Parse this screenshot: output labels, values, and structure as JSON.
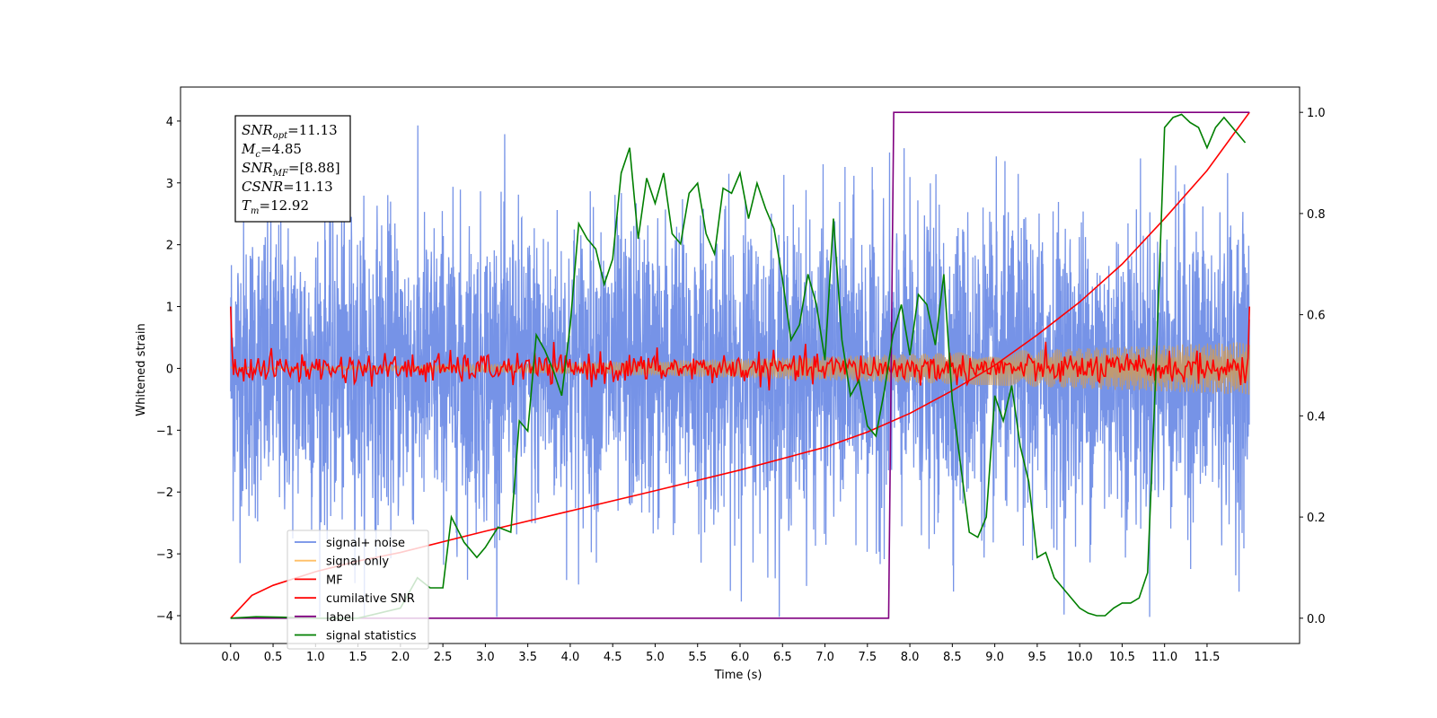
{
  "chart_data": {
    "type": "line",
    "title": "",
    "xlabel": "Time (s)",
    "ylabel": "Whitened strain",
    "xlim": [
      -0.59,
      12.59
    ],
    "ylim": [
      -4.45,
      4.55
    ],
    "y2lim": [
      -0.05,
      1.05
    ],
    "xticks": [
      0.0,
      0.5,
      1.0,
      1.5,
      2.0,
      2.5,
      3.0,
      3.5,
      4.0,
      4.5,
      5.0,
      5.5,
      6.0,
      6.5,
      7.0,
      7.5,
      8.0,
      8.5,
      9.0,
      9.5,
      10.0,
      10.5,
      11.0,
      11.5
    ],
    "xtick_labels": [
      "0.0",
      "0.5",
      "1.0",
      "1.5",
      "2.0",
      "2.5",
      "3.0",
      "3.5",
      "4.0",
      "4.5",
      "5.0",
      "5.5",
      "6.0",
      "6.5",
      "7.0",
      "7.5",
      "8.0",
      "8.5",
      "9.0",
      "9.5",
      "10.0",
      "10.5",
      "11.0",
      "11.5"
    ],
    "yticks": [
      -4,
      -3,
      -2,
      -1,
      0,
      1,
      2,
      3,
      4
    ],
    "ytick_labels": [
      "−4",
      "−3",
      "−2",
      "−1",
      "0",
      "1",
      "2",
      "3",
      "4"
    ],
    "y2ticks": [
      0.0,
      0.2,
      0.4,
      0.6,
      0.8,
      1.0
    ],
    "y2tick_labels": [
      "0.0",
      "0.2",
      "0.4",
      "0.6",
      "0.8",
      "1.0"
    ],
    "grid": false,
    "legend_position": "lower-left",
    "series": [
      {
        "name": "signal+ noise",
        "color": "#6f8de6",
        "axis": "left",
        "style": "noise",
        "amplitude": 1.2,
        "x_range": [
          0.0,
          12.0
        ]
      },
      {
        "name": "signal only",
        "color": "#ffbf66",
        "axis": "left",
        "style": "chirp-envelope",
        "amplitude_start": 0.02,
        "amplitude_end": 0.43,
        "x_range": [
          0.0,
          12.0
        ]
      },
      {
        "name": "MF",
        "color": "#ff0000",
        "axis": "left",
        "style": "noise",
        "amplitude": 0.12,
        "x_range": [
          0.0,
          12.0
        ],
        "endpoints": [
          1.0,
          1.0
        ]
      },
      {
        "name": "cumilative SNR",
        "color": "#ff0000",
        "axis": "right",
        "x": [
          0.0,
          0.25,
          0.5,
          1.0,
          1.5,
          2.0,
          3.0,
          4.0,
          5.0,
          6.0,
          7.0,
          7.5,
          8.0,
          8.5,
          9.0,
          9.5,
          10.0,
          10.5,
          11.0,
          11.5,
          12.0
        ],
        "y": [
          0.0,
          0.045,
          0.065,
          0.092,
          0.113,
          0.13,
          0.172,
          0.212,
          0.252,
          0.293,
          0.338,
          0.368,
          0.405,
          0.45,
          0.5,
          0.56,
          0.625,
          0.7,
          0.79,
          0.885,
          1.0
        ]
      },
      {
        "name": "label",
        "color": "#800080",
        "axis": "right",
        "x": [
          0.0,
          7.75,
          7.81,
          12.0
        ],
        "y": [
          0.0,
          0.0,
          1.0,
          1.0
        ]
      },
      {
        "name": "signal statistics",
        "color": "#007f00",
        "axis": "right",
        "x": [
          0.0,
          0.3,
          0.6,
          1.0,
          1.5,
          2.0,
          2.2,
          2.35,
          2.5,
          2.6,
          2.75,
          2.9,
          3.0,
          3.15,
          3.3,
          3.4,
          3.5,
          3.6,
          3.7,
          3.8,
          3.9,
          4.0,
          4.1,
          4.2,
          4.3,
          4.4,
          4.5,
          4.6,
          4.7,
          4.8,
          4.9,
          5.0,
          5.1,
          5.2,
          5.3,
          5.4,
          5.5,
          5.6,
          5.7,
          5.8,
          5.9,
          6.0,
          6.1,
          6.2,
          6.3,
          6.4,
          6.5,
          6.6,
          6.7,
          6.8,
          6.9,
          7.0,
          7.1,
          7.2,
          7.3,
          7.4,
          7.5,
          7.6,
          7.7,
          7.8,
          7.9,
          8.0,
          8.1,
          8.2,
          8.3,
          8.4,
          8.5,
          8.6,
          8.7,
          8.8,
          8.9,
          9.0,
          9.1,
          9.2,
          9.3,
          9.4,
          9.5,
          9.6,
          9.7,
          9.8,
          9.9,
          10.0,
          10.1,
          10.2,
          10.3,
          10.4,
          10.5,
          10.6,
          10.7,
          10.8,
          10.9,
          11.0,
          11.1,
          11.2,
          11.3,
          11.4,
          11.5,
          11.6,
          11.7,
          11.8,
          11.9,
          11.95
        ],
        "y": [
          0.0,
          0.003,
          0.002,
          0.0,
          0.0,
          0.02,
          0.08,
          0.06,
          0.06,
          0.2,
          0.15,
          0.12,
          0.14,
          0.18,
          0.17,
          0.39,
          0.37,
          0.56,
          0.53,
          0.49,
          0.44,
          0.58,
          0.78,
          0.75,
          0.73,
          0.66,
          0.71,
          0.88,
          0.93,
          0.75,
          0.87,
          0.82,
          0.88,
          0.76,
          0.74,
          0.84,
          0.86,
          0.76,
          0.72,
          0.85,
          0.84,
          0.88,
          0.79,
          0.86,
          0.81,
          0.77,
          0.67,
          0.55,
          0.58,
          0.68,
          0.62,
          0.51,
          0.79,
          0.55,
          0.44,
          0.47,
          0.38,
          0.36,
          0.45,
          0.56,
          0.62,
          0.52,
          0.64,
          0.62,
          0.54,
          0.68,
          0.43,
          0.3,
          0.17,
          0.16,
          0.2,
          0.44,
          0.39,
          0.46,
          0.34,
          0.27,
          0.12,
          0.13,
          0.08,
          0.06,
          0.04,
          0.02,
          0.01,
          0.005,
          0.005,
          0.02,
          0.03,
          0.03,
          0.04,
          0.09,
          0.5,
          0.97,
          0.99,
          0.996,
          0.98,
          0.97,
          0.93,
          0.97,
          0.99,
          0.97,
          0.95,
          0.94
        ]
      }
    ],
    "annotation": {
      "lines": [
        {
          "base": "SNR",
          "sub": "opt",
          "value": "=11.13"
        },
        {
          "base": "M",
          "sub": "c",
          "value": "=4.85"
        },
        {
          "base": "SNR",
          "sub": "MF",
          "value": "=[8.88]"
        },
        {
          "base": "CSNR",
          "sub": "",
          "value": "=11.13"
        },
        {
          "base": "T",
          "sub": "m",
          "value": "=12.92"
        }
      ]
    }
  }
}
